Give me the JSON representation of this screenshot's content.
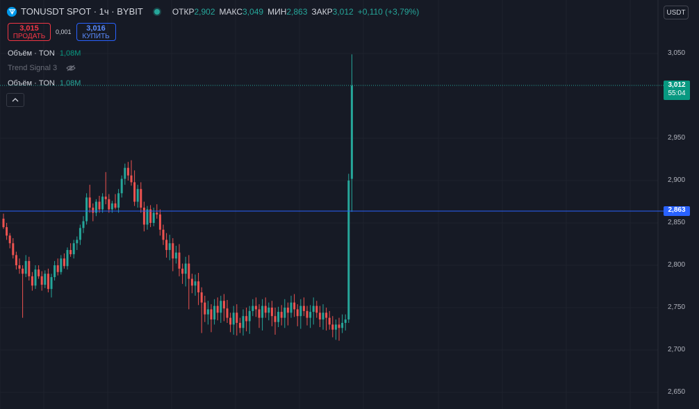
{
  "header": {
    "symbol_title": "TONUSDT SPOT · 1ч · BYBIT",
    "ohlc": [
      {
        "label": "ОТКР",
        "value": "2,902"
      },
      {
        "label": "МАКС",
        "value": "3,049"
      },
      {
        "label": "МИН",
        "value": "2,863"
      },
      {
        "label": "ЗАКР",
        "value": "3,012"
      }
    ],
    "change": "+0,110 (+3,79%)"
  },
  "trade": {
    "sell_price": "3,015",
    "sell_label": "ПРОДАТЬ",
    "spread": "0,001",
    "buy_price": "3,016",
    "buy_label": "КУПИТЬ"
  },
  "legend": [
    {
      "name": "Объём · TON",
      "value": "1,08M"
    },
    {
      "name": "Trend Signal 3",
      "value": ""
    },
    {
      "name": "Объём · TON",
      "value": "1,08M"
    }
  ],
  "currency_button": "USDT",
  "price_axis": {
    "last_price": "3,012",
    "countdown": "55:04",
    "line_price": "2,863"
  },
  "colors": {
    "up": "#26a69a",
    "down": "#ef5350",
    "background": "#161a25",
    "horizontal_line": "#2962ff"
  },
  "chart_data": {
    "type": "candlestick",
    "title": "TONUSDT SPOT · 1ч · BYBIT",
    "ylim": [
      2.63,
      3.07
    ],
    "y_ticks": [
      "3,050",
      "2,950",
      "2,900",
      "2,850",
      "2,800",
      "2,750",
      "2,700",
      "2,650"
    ],
    "grid": true,
    "horizontal_line": 2.863,
    "last_price": 3.012,
    "ohlc_approx": [
      [
        2.855,
        2.861,
        2.843,
        2.845
      ],
      [
        2.845,
        2.85,
        2.83,
        2.835
      ],
      [
        2.835,
        2.838,
        2.82,
        2.826
      ],
      [
        2.826,
        2.832,
        2.808,
        2.812
      ],
      [
        2.812,
        2.816,
        2.795,
        2.8
      ],
      [
        2.8,
        2.808,
        2.79,
        2.796
      ],
      [
        2.796,
        2.8,
        2.738,
        2.79
      ],
      [
        2.79,
        2.812,
        2.786,
        2.805
      ],
      [
        2.805,
        2.81,
        2.782,
        2.787
      ],
      [
        2.787,
        2.792,
        2.77,
        2.776
      ],
      [
        2.776,
        2.8,
        2.772,
        2.795
      ],
      [
        2.795,
        2.8,
        2.784,
        2.787
      ],
      [
        2.787,
        2.793,
        2.77,
        2.777
      ],
      [
        2.777,
        2.794,
        2.773,
        2.79
      ],
      [
        2.79,
        2.796,
        2.768,
        2.772
      ],
      [
        2.772,
        2.79,
        2.762,
        2.786
      ],
      [
        2.786,
        2.805,
        2.782,
        2.8
      ],
      [
        2.8,
        2.808,
        2.788,
        2.792
      ],
      [
        2.792,
        2.812,
        2.789,
        2.808
      ],
      [
        2.808,
        2.814,
        2.796,
        2.799
      ],
      [
        2.799,
        2.821,
        2.795,
        2.818
      ],
      [
        2.818,
        2.826,
        2.81,
        2.813
      ],
      [
        2.813,
        2.83,
        2.808,
        2.826
      ],
      [
        2.826,
        2.834,
        2.818,
        2.83
      ],
      [
        2.83,
        2.848,
        2.824,
        2.844
      ],
      [
        2.844,
        2.858,
        2.838,
        2.852
      ],
      [
        2.852,
        2.885,
        2.848,
        2.88
      ],
      [
        2.88,
        2.895,
        2.862,
        2.868
      ],
      [
        2.868,
        2.873,
        2.852,
        2.862
      ],
      [
        2.862,
        2.878,
        2.858,
        2.875
      ],
      [
        2.875,
        2.882,
        2.862,
        2.866
      ],
      [
        2.866,
        2.885,
        2.862,
        2.881
      ],
      [
        2.881,
        2.91,
        2.872,
        2.878
      ],
      [
        2.878,
        2.884,
        2.862,
        2.866
      ],
      [
        2.866,
        2.876,
        2.862,
        2.873
      ],
      [
        2.873,
        2.884,
        2.866,
        2.868
      ],
      [
        2.868,
        2.89,
        2.862,
        2.885
      ],
      [
        2.885,
        2.906,
        2.88,
        2.902
      ],
      [
        2.902,
        2.92,
        2.895,
        2.915
      ],
      [
        2.915,
        2.922,
        2.9,
        2.906
      ],
      [
        2.906,
        2.924,
        2.894,
        2.898
      ],
      [
        2.898,
        2.912,
        2.87,
        2.875
      ],
      [
        2.875,
        2.895,
        2.868,
        2.89
      ],
      [
        2.89,
        2.898,
        2.862,
        2.868
      ],
      [
        2.868,
        2.875,
        2.84,
        2.848
      ],
      [
        2.848,
        2.87,
        2.842,
        2.866
      ],
      [
        2.866,
        2.871,
        2.845,
        2.85
      ],
      [
        2.85,
        2.868,
        2.846,
        2.862
      ],
      [
        2.862,
        2.872,
        2.855,
        2.86
      ],
      [
        2.86,
        2.866,
        2.835,
        2.842
      ]
    ]
  }
}
